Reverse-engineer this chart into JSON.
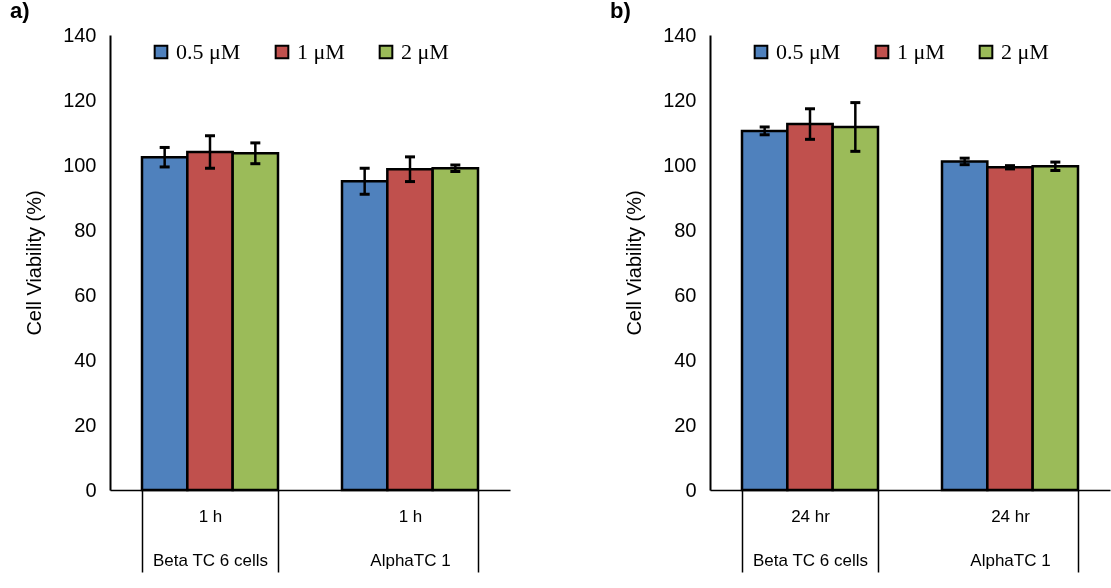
{
  "chart_data": [
    {
      "type": "bar",
      "title": "a)",
      "ylabel": "Cell Viability (%)",
      "categories": [
        "1 h\nBeta TC 6 cells",
        "1 h\nAlphaTC 1"
      ],
      "ylim": [
        0,
        140
      ],
      "yticks": [
        0,
        20,
        40,
        60,
        80,
        100,
        120,
        140
      ],
      "grid": false,
      "legend": "top",
      "series": [
        {
          "name": "0.5 μM",
          "color": "#4f81bd",
          "values": [
            102.4,
            95
          ],
          "errors": [
            3,
            4
          ]
        },
        {
          "name": "1 μM",
          "color": "#c0504d",
          "values": [
            104,
            98.7
          ],
          "errors": [
            5,
            3.8
          ]
        },
        {
          "name": "2 μM",
          "color": "#9bbb59",
          "values": [
            103.6,
            99
          ],
          "errors": [
            3.2,
            1
          ]
        }
      ]
    },
    {
      "type": "bar",
      "title": "b)",
      "ylabel": "Cell Viability (%)",
      "categories": [
        "24 hr\nBeta TC 6 cells",
        "24 hr\nAlphaTC 1"
      ],
      "ylim": [
        0,
        140
      ],
      "yticks": [
        0,
        20,
        40,
        60,
        80,
        100,
        120,
        140
      ],
      "grid": false,
      "legend": "top",
      "series": [
        {
          "name": "0.5 μM",
          "color": "#4f81bd",
          "values": [
            110.5,
            101.1
          ],
          "errors": [
            1.2,
            1
          ]
        },
        {
          "name": "1 μM",
          "color": "#c0504d",
          "values": [
            112.6,
            99.3
          ],
          "errors": [
            4.7,
            0.5
          ]
        },
        {
          "name": "2 μM",
          "color": "#9bbb59",
          "values": [
            111.7,
            99.6
          ],
          "errors": [
            7.5,
            1.3
          ]
        }
      ]
    }
  ]
}
